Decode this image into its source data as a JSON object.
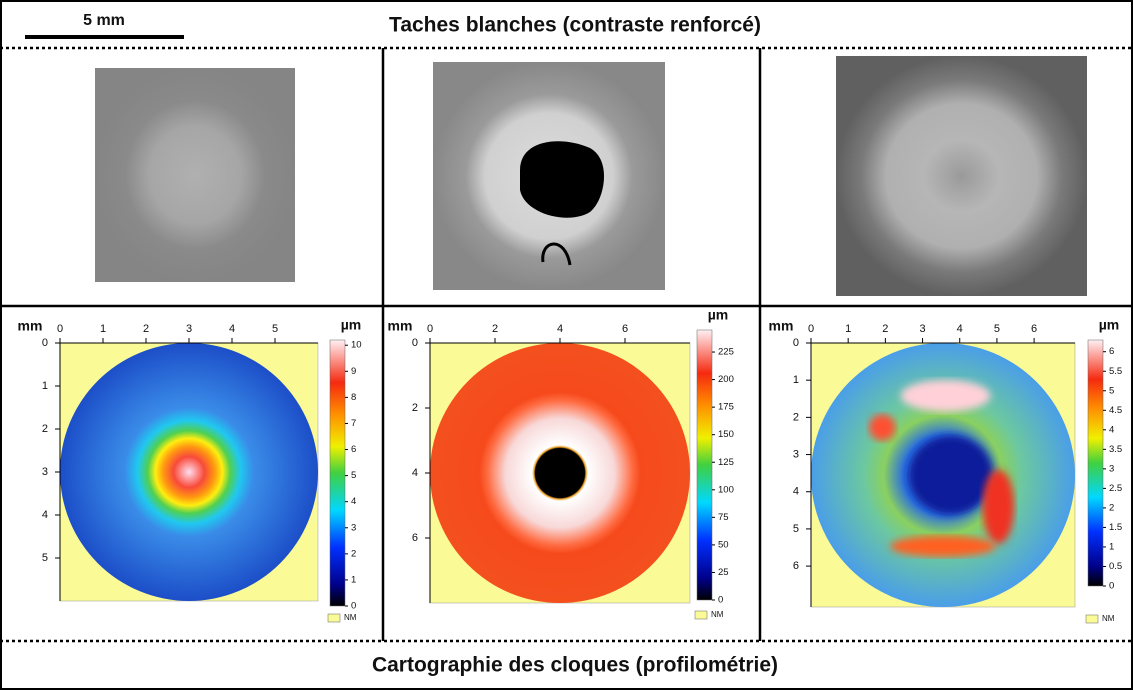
{
  "scale_bar": "5 mm",
  "header": "Taches blanches (contraste renforcé)",
  "footer": "Cartographie des cloques (profilométrie)",
  "maps": [
    {
      "axis_unit": "mm",
      "xlim": [
        0,
        6
      ],
      "ylim": [
        0,
        6
      ],
      "xticks": [
        0,
        1,
        2,
        3,
        4,
        5
      ],
      "yticks": [
        0,
        1,
        2,
        3,
        4,
        5
      ],
      "colorbar_unit": "µm",
      "clim": [
        0,
        10.2
      ],
      "cticks": [
        0,
        1,
        2,
        3,
        4,
        5,
        6,
        7,
        8,
        9,
        10
      ],
      "nm_label": "NM"
    },
    {
      "axis_unit": "mm",
      "xlim": [
        0,
        8
      ],
      "ylim": [
        0,
        8
      ],
      "xticks": [
        0,
        2,
        4,
        6
      ],
      "yticks": [
        0,
        2,
        4,
        6
      ],
      "colorbar_unit": "µm",
      "clim": [
        0,
        245
      ],
      "cticks": [
        0,
        25,
        50,
        75,
        100,
        125,
        150,
        175,
        200,
        225
      ],
      "nm_label": "NM"
    },
    {
      "axis_unit": "mm",
      "xlim": [
        0,
        7.1
      ],
      "ylim": [
        0,
        7.1
      ],
      "xticks": [
        0,
        1,
        2,
        3,
        4,
        5,
        6
      ],
      "yticks": [
        0,
        1,
        2,
        3,
        4,
        5,
        6
      ],
      "colorbar_unit": "µm",
      "clim": [
        0,
        6.3
      ],
      "cticks": [
        0,
        0.5,
        1,
        1.5,
        2,
        2.5,
        3,
        3.5,
        4,
        4.5,
        5,
        5.5,
        6
      ],
      "nm_label": "NM"
    }
  ]
}
